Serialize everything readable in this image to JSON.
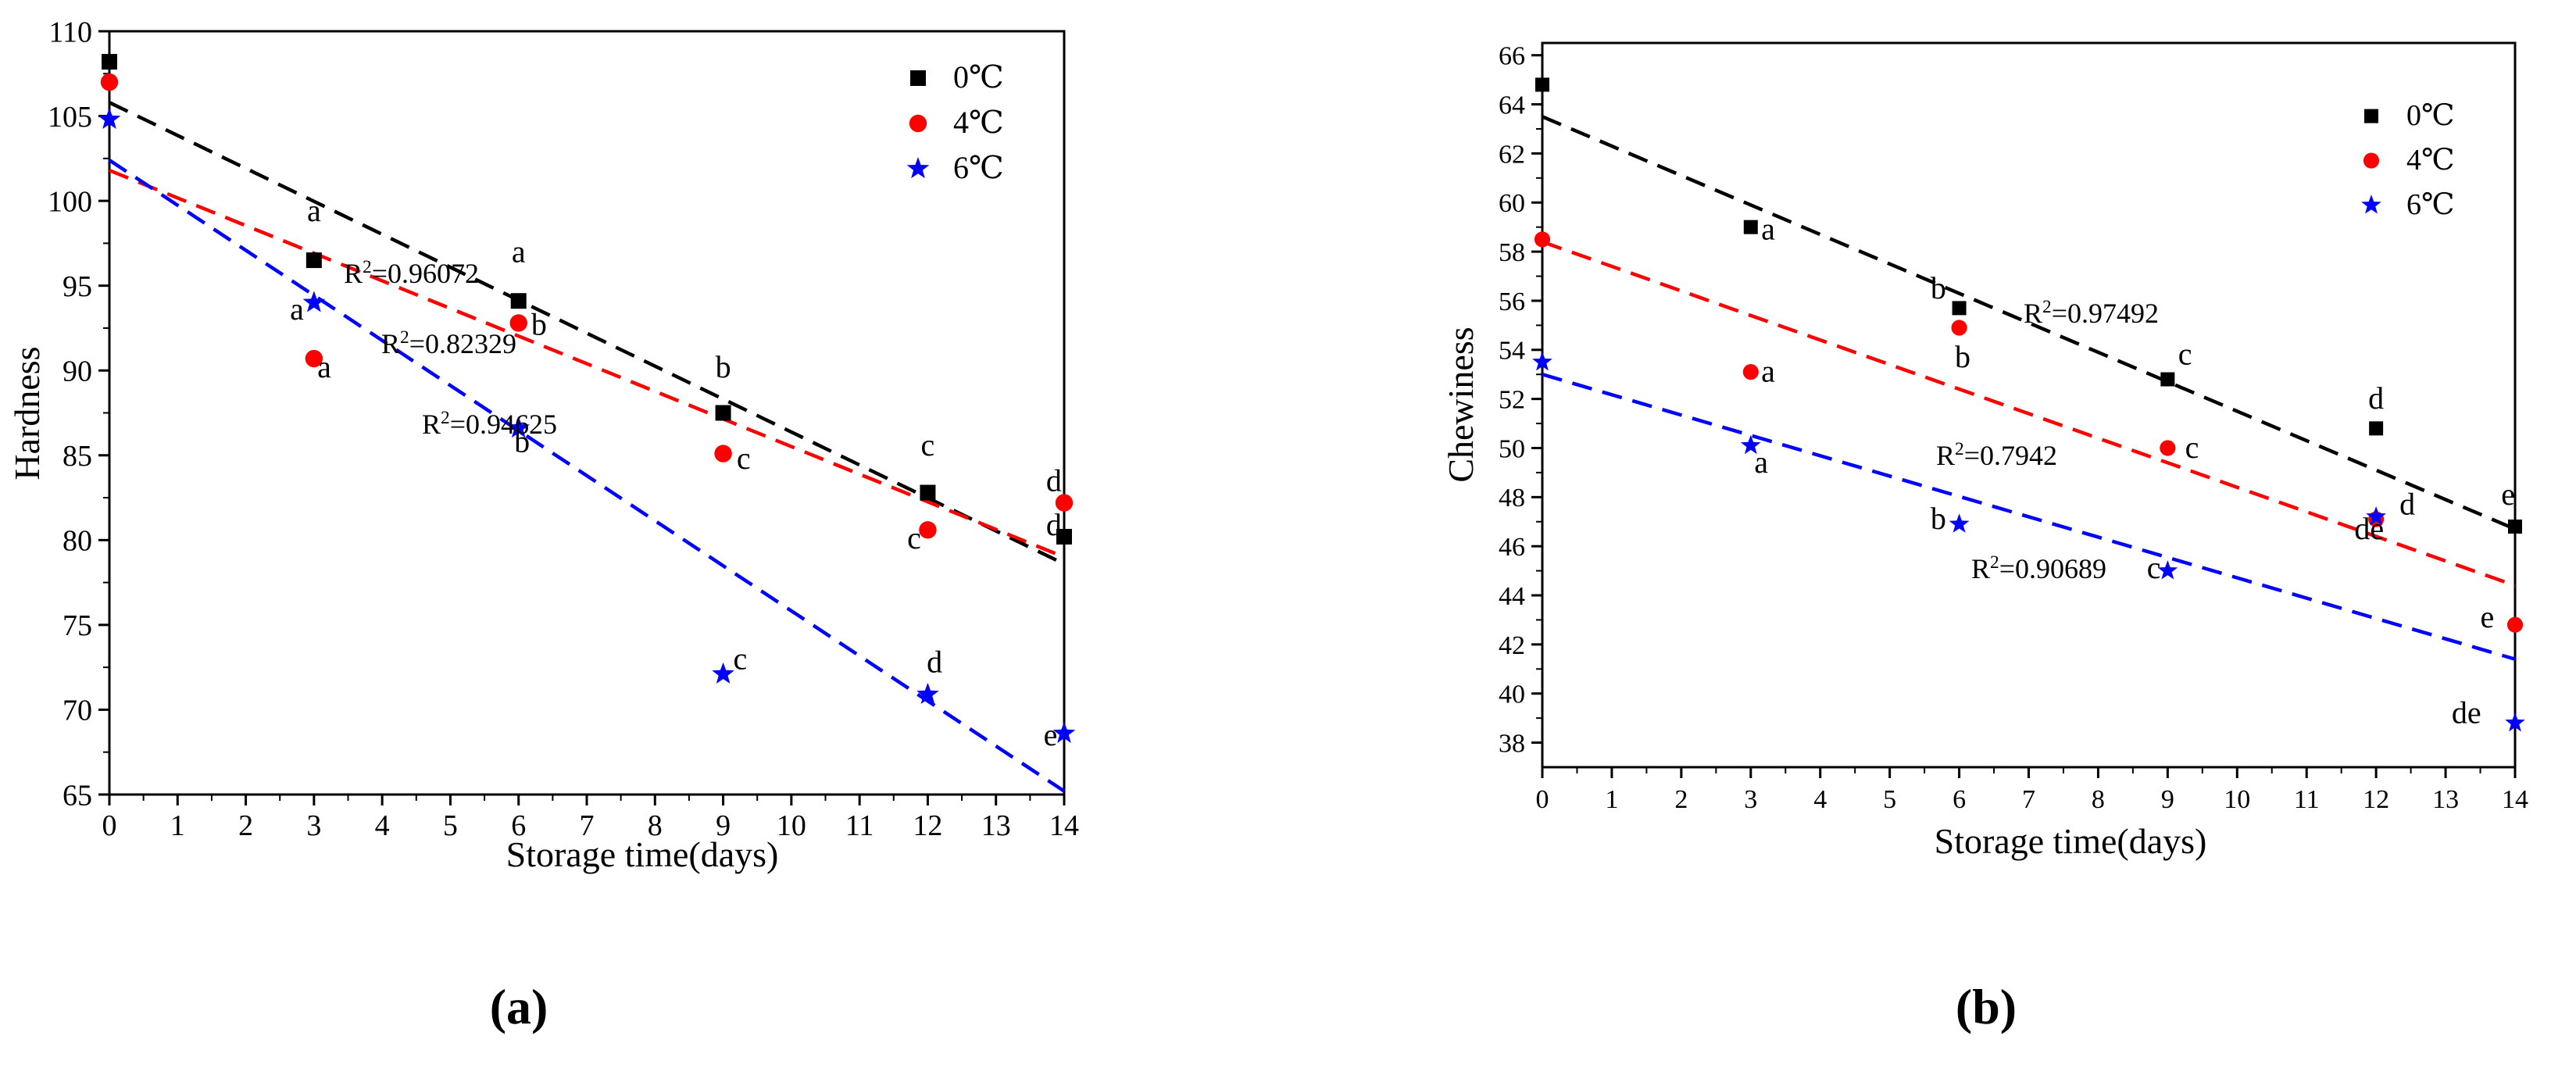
{
  "figure": {
    "panel_a_caption": "(a)",
    "panel_b_caption": "(b)"
  },
  "colors": {
    "s0": "#000000",
    "s4": "#ff0000",
    "s6": "#0000ff"
  },
  "chart_data": [
    {
      "type": "scatter",
      "panel": "a",
      "xlabel": "Storage time(days)",
      "ylabel": "Hardness",
      "xlim": [
        0,
        14
      ],
      "ylim": [
        65,
        110
      ],
      "xticks": [
        0,
        1,
        2,
        3,
        4,
        5,
        6,
        7,
        8,
        9,
        10,
        11,
        12,
        13,
        14
      ],
      "yticks": [
        65,
        70,
        75,
        80,
        85,
        90,
        95,
        100,
        105,
        110
      ],
      "legend": [
        "0℃",
        "4℃",
        "6℃"
      ],
      "legend_position": "top-right",
      "series": [
        {
          "name": "0℃",
          "marker": "square",
          "color": "#000000",
          "x": [
            0,
            3,
            6,
            9,
            12,
            14
          ],
          "y": [
            108.2,
            96.5,
            94.1,
            87.5,
            82.8,
            80.2
          ],
          "fit": [
            105.8,
            78.6
          ],
          "r2_label": "R²=0.96072"
        },
        {
          "name": "4℃",
          "marker": "circle",
          "color": "#ff0000",
          "x": [
            0,
            3,
            6,
            9,
            12,
            14
          ],
          "y": [
            107.0,
            90.7,
            92.8,
            85.1,
            80.6,
            82.2
          ],
          "fit": [
            101.8,
            79.0
          ],
          "r2_label": "R²=0.82329"
        },
        {
          "name": "6℃",
          "marker": "star",
          "color": "#0000ff",
          "x": [
            0,
            3,
            6,
            9,
            12,
            14
          ],
          "y": [
            104.8,
            94.0,
            86.6,
            72.1,
            70.9,
            68.6
          ],
          "fit": [
            102.4,
            65.2
          ],
          "r2_label": "R²=0.94625"
        }
      ],
      "annotations": [
        {
          "text": "a",
          "x": 3,
          "y": 98.8
        },
        {
          "text": "a",
          "x": 6,
          "y": 96.4
        },
        {
          "text": "b",
          "x": 9,
          "y": 89.6
        },
        {
          "text": "c",
          "x": 12,
          "y": 85.0
        },
        {
          "text": "d",
          "x": 13.85,
          "y": 82.9
        },
        {
          "text": "d",
          "x": 13.85,
          "y": 80.3
        },
        {
          "text": "a",
          "x": 3.15,
          "y": 89.6
        },
        {
          "text": "b",
          "x": 6.3,
          "y": 92.1
        },
        {
          "text": "c",
          "x": 9.3,
          "y": 84.2
        },
        {
          "text": "c",
          "x": 11.8,
          "y": 79.5
        },
        {
          "text": "a",
          "x": 2.75,
          "y": 93.0
        },
        {
          "text": "b",
          "x": 6.05,
          "y": 85.2
        },
        {
          "text": "c",
          "x": 9.25,
          "y": 72.4
        },
        {
          "text": "d",
          "x": 12.1,
          "y": 72.2
        },
        {
          "text": "e",
          "x": 13.8,
          "y": 67.9
        }
      ]
    },
    {
      "type": "scatter",
      "panel": "b",
      "xlabel": "Storage time(days)",
      "ylabel": "Chewiness",
      "xlim": [
        0,
        14
      ],
      "ylim": [
        37,
        66.5
      ],
      "xticks": [
        0,
        1,
        2,
        3,
        4,
        5,
        6,
        7,
        8,
        9,
        10,
        11,
        12,
        13,
        14
      ],
      "yticks": [
        38,
        40,
        42,
        44,
        46,
        48,
        50,
        52,
        54,
        56,
        58,
        60,
        62,
        64,
        66
      ],
      "legend": [
        "0℃",
        "4℃",
        "6℃"
      ],
      "legend_position": "top-right",
      "series": [
        {
          "name": "0℃",
          "marker": "square",
          "color": "#000000",
          "x": [
            0,
            3,
            6,
            9,
            12,
            14
          ],
          "y": [
            64.8,
            59.0,
            55.7,
            52.8,
            50.8,
            46.8
          ],
          "fit": [
            63.5,
            46.7
          ],
          "r2_label": "R²=0.97492"
        },
        {
          "name": "4℃",
          "marker": "circle",
          "color": "#ff0000",
          "x": [
            0,
            3,
            6,
            9,
            12,
            14
          ],
          "y": [
            58.5,
            53.1,
            54.9,
            50.0,
            47.1,
            42.8
          ],
          "fit": [
            58.4,
            44.4
          ],
          "r2_label": "R²=0.7942"
        },
        {
          "name": "6℃",
          "marker": "star",
          "color": "#0000ff",
          "x": [
            0,
            3,
            6,
            9,
            12,
            14
          ],
          "y": [
            53.5,
            50.1,
            46.9,
            45.0,
            47.2,
            38.8
          ],
          "fit": [
            53.0,
            41.4
          ],
          "r2_label": "R²=0.90689"
        }
      ],
      "annotations": [
        {
          "text": "a",
          "x": 3.25,
          "y": 58.5
        },
        {
          "text": "b",
          "x": 5.7,
          "y": 56.1
        },
        {
          "text": "c",
          "x": 9.25,
          "y": 53.4
        },
        {
          "text": "d",
          "x": 12.0,
          "y": 51.6
        },
        {
          "text": "e",
          "x": 13.9,
          "y": 47.7
        },
        {
          "text": "a",
          "x": 3.25,
          "y": 52.7
        },
        {
          "text": "b",
          "x": 6.05,
          "y": 53.3
        },
        {
          "text": "c",
          "x": 9.35,
          "y": 49.6
        },
        {
          "text": "d",
          "x": 12.45,
          "y": 47.3
        },
        {
          "text": "de",
          "x": 11.9,
          "y": 46.3
        },
        {
          "text": "e",
          "x": 13.6,
          "y": 42.7
        },
        {
          "text": "a",
          "x": 3.15,
          "y": 49.0
        },
        {
          "text": "b",
          "x": 5.7,
          "y": 46.7
        },
        {
          "text": "c",
          "x": 8.8,
          "y": 44.7
        },
        {
          "text": "de",
          "x": 13.3,
          "y": 38.8
        }
      ]
    }
  ]
}
